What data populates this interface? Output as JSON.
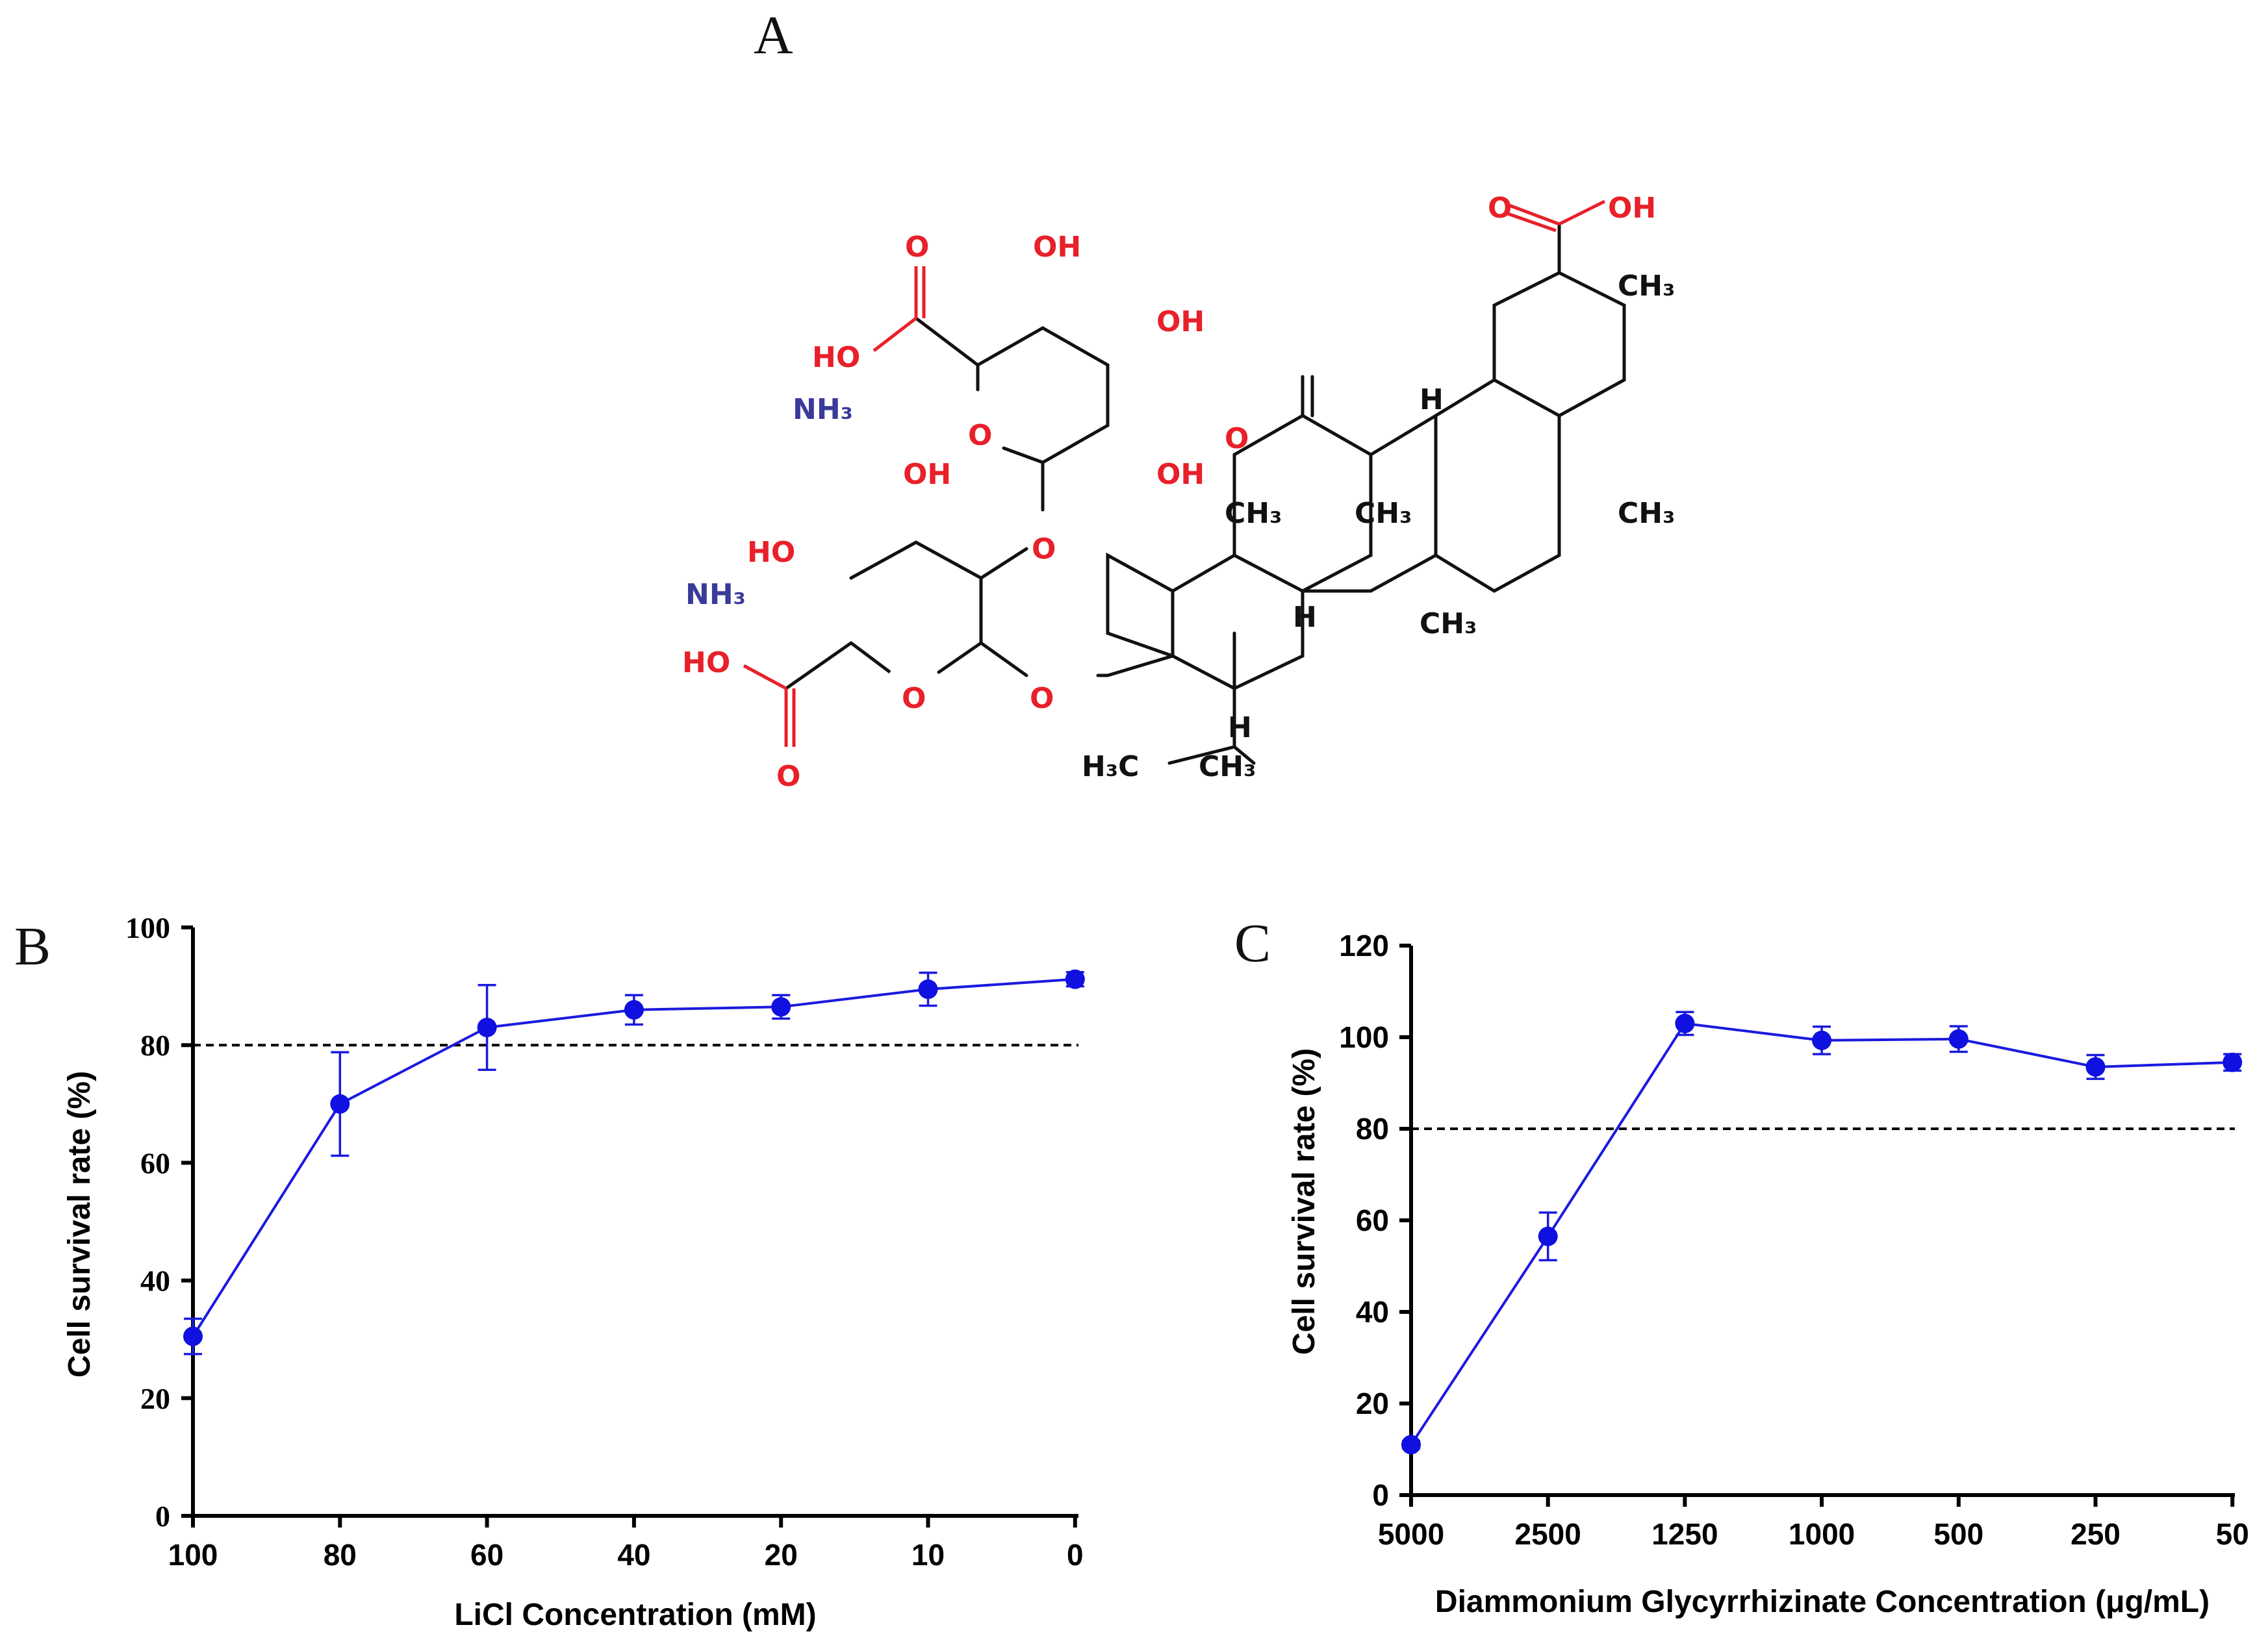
{
  "panels": {
    "a": "A",
    "b": "B",
    "c": "C"
  },
  "structure": {
    "labels": {
      "o": "O",
      "oh": "OH",
      "ho": "HO",
      "nh3": "NH₃",
      "ch3": "CH₃",
      "h3c": "H₃C",
      "h": "H"
    }
  },
  "colors": {
    "series": "#1010e0",
    "reference": "#000000",
    "heteroatom_red": "#e8202a",
    "nitrogen_blue": "#3a3a9a"
  },
  "chart_data": [
    {
      "panel": "B",
      "type": "line",
      "categories": [
        "100",
        "80",
        "60",
        "40",
        "20",
        "10",
        "0"
      ],
      "series": [
        {
          "name": "Cell survival rate",
          "values": [
            30.5,
            70.0,
            83.0,
            86.0,
            86.5,
            89.5,
            91.2
          ],
          "errors": [
            3.0,
            8.8,
            7.2,
            2.5,
            2.0,
            2.8,
            1.2
          ]
        }
      ],
      "reference_line": 80,
      "xlabel": "LiCl Concentration (mM)",
      "ylabel": "Cell survival rate (%)",
      "ylim": [
        0,
        100
      ],
      "yticks": [
        0,
        20,
        40,
        60,
        80,
        100
      ],
      "ytick_labels": [
        "0",
        "20",
        "40",
        "60",
        "80",
        "100"
      ]
    },
    {
      "panel": "C",
      "type": "line",
      "categories": [
        "5000",
        "2500",
        "1250",
        "1000",
        "500",
        "250",
        "50"
      ],
      "series": [
        {
          "name": "Cell survival rate",
          "values": [
            11.0,
            56.5,
            103.0,
            99.3,
            99.6,
            93.5,
            94.5
          ],
          "errors": [
            0.8,
            5.2,
            2.5,
            3.0,
            2.8,
            2.6,
            1.8
          ]
        }
      ],
      "reference_line": 80,
      "xlabel": "Diammonium Glycyrrhizinate Concentration (μg/mL)",
      "ylabel": "Cell survival rate (%)",
      "ylim": [
        0,
        120
      ],
      "yticks": [
        0,
        20,
        40,
        60,
        80,
        100,
        120
      ],
      "ytick_labels": [
        "0",
        "20",
        "40",
        "60",
        "80",
        "100",
        "120"
      ]
    }
  ]
}
